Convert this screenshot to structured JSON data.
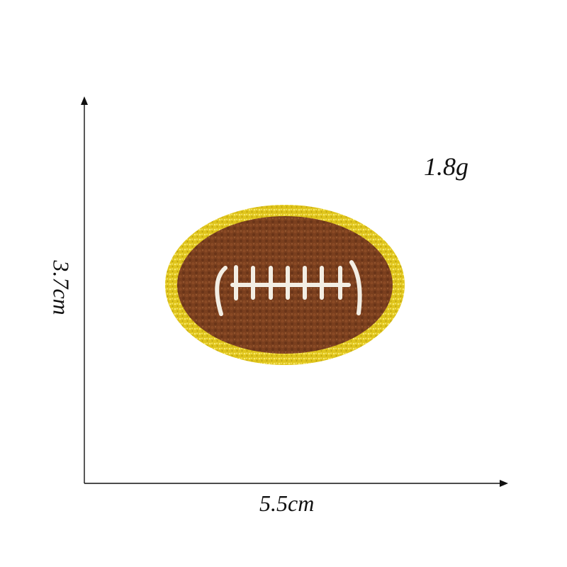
{
  "labels": {
    "weight": "1.8g",
    "height": "3.7cm",
    "width": "5.5cm"
  },
  "patch": {
    "subject": "embroidered chenille football patch",
    "border_color": "#e0c51c",
    "ball_color": "#7a3f1e",
    "lace_color": "#f3eee4"
  },
  "axis_color": "#111111"
}
